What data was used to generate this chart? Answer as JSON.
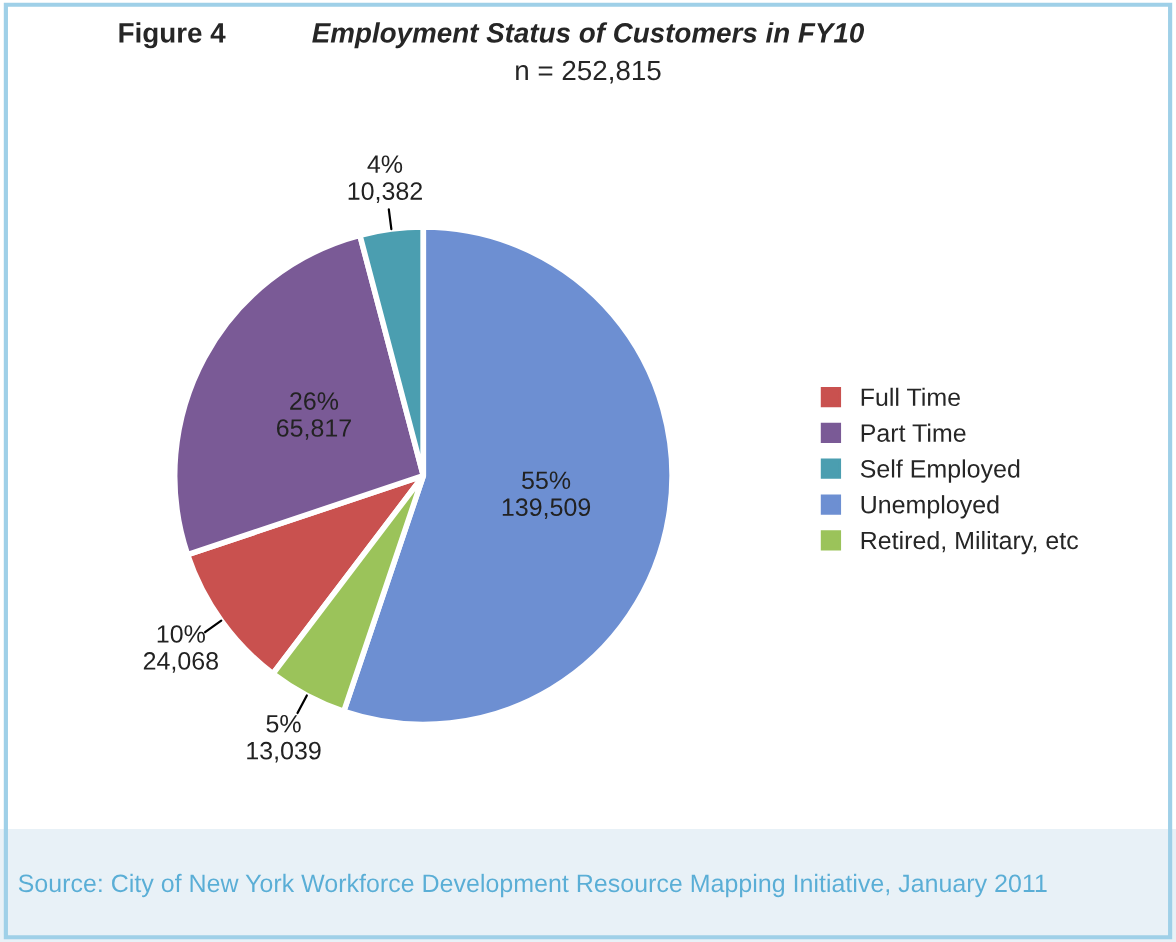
{
  "chart_data": {
    "type": "pie",
    "title": "Employment Status of Customers in FY10",
    "subtitle": "n = 252,815",
    "categories": [
      "Full Time",
      "Part Time",
      "Self Employed",
      "Unemployed",
      "Retired, Military, etc"
    ],
    "values": [
      24068,
      65817,
      10382,
      139509,
      13039
    ],
    "value_labels": [
      "10%\n24,068",
      "26%\n65,817",
      "4%\n10,382",
      "55%\n139,509",
      "5%\n13,039"
    ],
    "colors": [
      "#c9514f",
      "#7a5a96",
      "#4b9eb0",
      "#6d8fd2",
      "#9bc35a"
    ],
    "legend": "right",
    "annotations": [
      "Figure 4",
      "Source: City of New York Workforce Development Resource Mapping Initiative, January 2011"
    ]
  }
}
